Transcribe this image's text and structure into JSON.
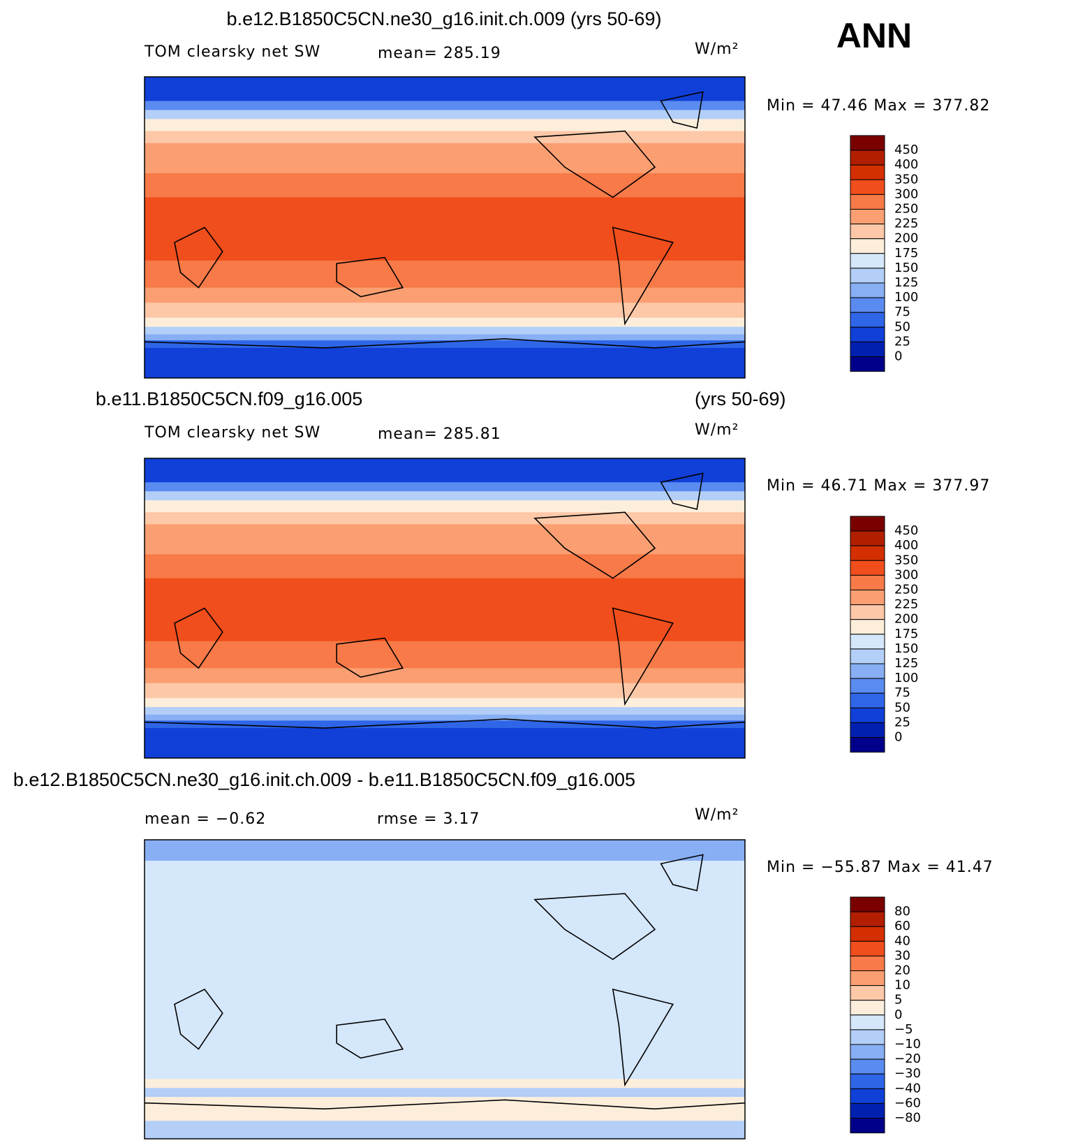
{
  "header": {
    "label": "ANN"
  },
  "panels": [
    {
      "title": "b.e12.B1850C5CN.ne30_g16.init.ch.009 (yrs 50-69)",
      "left": "TOM clearsky net SW",
      "center": "mean= 285.19",
      "units": "W/m²",
      "min_max": "Min =   47.46  Max =  377.82",
      "colorbar": [
        "450",
        "400",
        "350",
        "300",
        "250",
        "225",
        "200",
        "175",
        "150",
        "125",
        "100",
        "75",
        "50",
        "25",
        "0"
      ]
    },
    {
      "title": "b.e11.B1850C5CN.f09_g16.005",
      "title_right": "(yrs 50-69)",
      "left": "TOM clearsky net SW",
      "center": "mean= 285.81",
      "units": "W/m²",
      "min_max": "Min =   46.71  Max =  377.97",
      "colorbar": [
        "450",
        "400",
        "350",
        "300",
        "250",
        "225",
        "200",
        "175",
        "150",
        "125",
        "100",
        "75",
        "50",
        "25",
        "0"
      ]
    },
    {
      "title": "b.e12.B1850C5CN.ne30_g16.init.ch.009 - b.e11.B1850C5CN.f09_g16.005",
      "left": "mean =   −0.62",
      "center": "rmse =    3.17",
      "units": "W/m²",
      "min_max": "Min = −55.87  Max =   41.47",
      "colorbar": [
        "80",
        "60",
        "40",
        "30",
        "20",
        "10",
        "5",
        "0",
        "−5",
        "−10",
        "−20",
        "−30",
        "−40",
        "−60",
        "−80"
      ]
    }
  ],
  "colors": [
    "#7a0000",
    "#b21f00",
    "#d32f00",
    "#f04e1c",
    "#f77a48",
    "#fb9f72",
    "#fdc8a8",
    "#fdeedb",
    "#d5e7fb",
    "#b3cff8",
    "#88aff4",
    "#5a8bf0",
    "#2f66e8",
    "#1040d8",
    "#0020b0",
    "#00008a"
  ]
}
